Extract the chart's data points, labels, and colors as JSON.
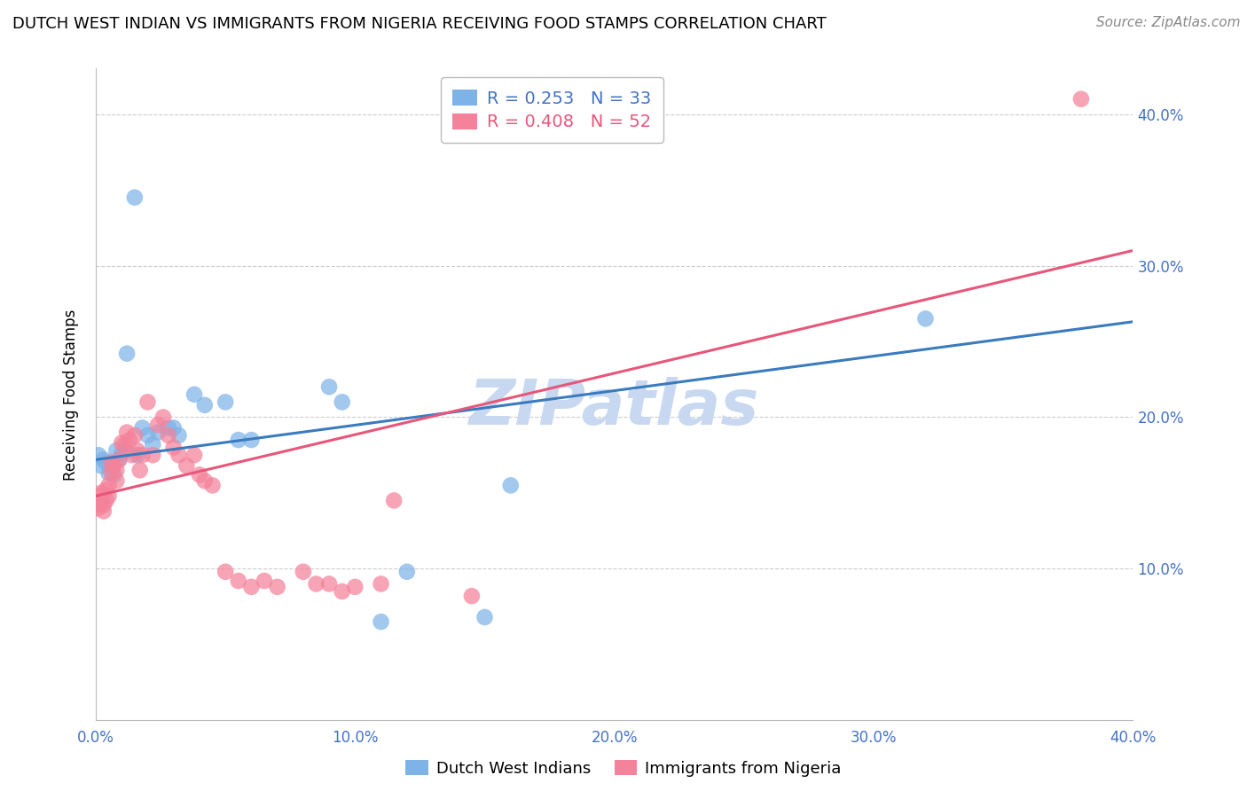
{
  "title": "DUTCH WEST INDIAN VS IMMIGRANTS FROM NIGERIA RECEIVING FOOD STAMPS CORRELATION CHART",
  "source": "Source: ZipAtlas.com",
  "ylabel": "Receiving Food Stamps",
  "watermark": "ZIPatlas",
  "legend_blue_r": "0.253",
  "legend_blue_n": "33",
  "legend_pink_r": "0.408",
  "legend_pink_n": "52",
  "legend_label_blue": "Dutch West Indians",
  "legend_label_pink": "Immigrants from Nigeria",
  "blue_color": "#7EB3E8",
  "pink_color": "#F4829A",
  "line_blue_color": "#3A7BBF",
  "line_pink_color": "#E8567A",
  "text_blue_color": "#4472C4",
  "text_pink_color": "#E8567A",
  "blue_scatter": [
    [
      0.001,
      0.175
    ],
    [
      0.002,
      0.168
    ],
    [
      0.003,
      0.172
    ],
    [
      0.004,
      0.17
    ],
    [
      0.005,
      0.163
    ],
    [
      0.006,
      0.168
    ],
    [
      0.007,
      0.162
    ],
    [
      0.008,
      0.178
    ],
    [
      0.009,
      0.172
    ],
    [
      0.01,
      0.176
    ],
    [
      0.011,
      0.178
    ],
    [
      0.012,
      0.242
    ],
    [
      0.015,
      0.345
    ],
    [
      0.016,
      0.175
    ],
    [
      0.018,
      0.193
    ],
    [
      0.02,
      0.188
    ],
    [
      0.022,
      0.182
    ],
    [
      0.024,
      0.19
    ],
    [
      0.028,
      0.193
    ],
    [
      0.03,
      0.193
    ],
    [
      0.032,
      0.188
    ],
    [
      0.038,
      0.215
    ],
    [
      0.042,
      0.208
    ],
    [
      0.05,
      0.21
    ],
    [
      0.055,
      0.185
    ],
    [
      0.06,
      0.185
    ],
    [
      0.09,
      0.22
    ],
    [
      0.095,
      0.21
    ],
    [
      0.11,
      0.065
    ],
    [
      0.12,
      0.098
    ],
    [
      0.15,
      0.068
    ],
    [
      0.16,
      0.155
    ],
    [
      0.32,
      0.265
    ]
  ],
  "pink_scatter": [
    [
      0.001,
      0.148
    ],
    [
      0.001,
      0.143
    ],
    [
      0.001,
      0.14
    ],
    [
      0.002,
      0.145
    ],
    [
      0.002,
      0.15
    ],
    [
      0.003,
      0.138
    ],
    [
      0.003,
      0.142
    ],
    [
      0.004,
      0.145
    ],
    [
      0.004,
      0.152
    ],
    [
      0.005,
      0.148
    ],
    [
      0.005,
      0.155
    ],
    [
      0.006,
      0.17
    ],
    [
      0.006,
      0.163
    ],
    [
      0.007,
      0.168
    ],
    [
      0.008,
      0.158
    ],
    [
      0.008,
      0.165
    ],
    [
      0.009,
      0.172
    ],
    [
      0.01,
      0.183
    ],
    [
      0.011,
      0.182
    ],
    [
      0.012,
      0.19
    ],
    [
      0.013,
      0.185
    ],
    [
      0.014,
      0.175
    ],
    [
      0.015,
      0.188
    ],
    [
      0.016,
      0.178
    ],
    [
      0.017,
      0.165
    ],
    [
      0.018,
      0.175
    ],
    [
      0.02,
      0.21
    ],
    [
      0.022,
      0.175
    ],
    [
      0.024,
      0.195
    ],
    [
      0.026,
      0.2
    ],
    [
      0.028,
      0.188
    ],
    [
      0.03,
      0.18
    ],
    [
      0.032,
      0.175
    ],
    [
      0.035,
      0.168
    ],
    [
      0.038,
      0.175
    ],
    [
      0.04,
      0.162
    ],
    [
      0.042,
      0.158
    ],
    [
      0.045,
      0.155
    ],
    [
      0.05,
      0.098
    ],
    [
      0.055,
      0.092
    ],
    [
      0.06,
      0.088
    ],
    [
      0.065,
      0.092
    ],
    [
      0.07,
      0.088
    ],
    [
      0.08,
      0.098
    ],
    [
      0.085,
      0.09
    ],
    [
      0.09,
      0.09
    ],
    [
      0.095,
      0.085
    ],
    [
      0.1,
      0.088
    ],
    [
      0.11,
      0.09
    ],
    [
      0.115,
      0.145
    ],
    [
      0.145,
      0.082
    ],
    [
      0.38,
      0.41
    ]
  ],
  "blue_line": {
    "x_start": 0.0,
    "x_end": 0.4,
    "y_start": 0.172,
    "y_end": 0.263
  },
  "pink_line": {
    "x_start": 0.0,
    "x_end": 0.4,
    "y_start": 0.148,
    "y_end": 0.31
  },
  "xlim": [
    0.0,
    0.4
  ],
  "ylim": [
    0.0,
    0.43
  ],
  "xtick_vals": [
    0.0,
    0.1,
    0.2,
    0.3,
    0.4
  ],
  "xtick_labels": [
    "0.0%",
    "10.0%",
    "20.0%",
    "30.0%",
    "40.0%"
  ],
  "ytick_vals": [
    0.1,
    0.2,
    0.3,
    0.4
  ],
  "ytick_labels": [
    "10.0%",
    "20.0%",
    "30.0%",
    "40.0%"
  ],
  "grid_color": "#CCCCCC",
  "background_color": "#FFFFFF",
  "title_fontsize": 13,
  "axis_label_fontsize": 12,
  "tick_fontsize": 12,
  "watermark_fontsize": 52,
  "watermark_color": "#C8D8F0",
  "source_fontsize": 11,
  "scatter_size": 180,
  "scatter_alpha": 0.72
}
